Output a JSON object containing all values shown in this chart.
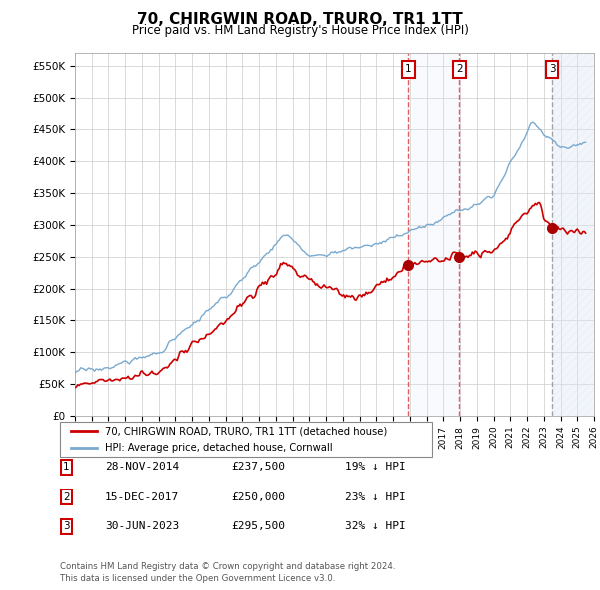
{
  "title": "70, CHIRGWIN ROAD, TRURO, TR1 1TT",
  "subtitle": "Price paid vs. HM Land Registry's House Price Index (HPI)",
  "ylim": [
    0,
    570000
  ],
  "yticks": [
    0,
    50000,
    100000,
    150000,
    200000,
    250000,
    300000,
    350000,
    400000,
    450000,
    500000,
    550000
  ],
  "ytick_labels": [
    "£0",
    "£50K",
    "£100K",
    "£150K",
    "£200K",
    "£250K",
    "£300K",
    "£350K",
    "£400K",
    "£450K",
    "£500K",
    "£550K"
  ],
  "background_color": "#ffffff",
  "grid_color": "#cccccc",
  "hpi_color": "#7aaad0",
  "price_color": "#cc0000",
  "sale_marker_color": "#aa0000",
  "sale_line_color_red": "#dd4444",
  "sale_line_color_gray": "#888888",
  "hatch_color": "#dce8f5",
  "shade_color": "#dce8f5",
  "transactions": [
    {
      "id": 1,
      "date_x": 2014.92,
      "price": 237500,
      "label": "28-NOV-2014",
      "line_style": "red"
    },
    {
      "id": 2,
      "date_x": 2017.96,
      "price": 250000,
      "label": "15-DEC-2017",
      "line_style": "red"
    },
    {
      "id": 3,
      "date_x": 2023.49,
      "price": 295500,
      "label": "30-JUN-2023",
      "line_style": "gray"
    }
  ],
  "legend_entries": [
    "70, CHIRGWIN ROAD, TRURO, TR1 1TT (detached house)",
    "HPI: Average price, detached house, Cornwall"
  ],
  "table_rows": [
    {
      "id": 1,
      "date": "28-NOV-2014",
      "price": "£237,500",
      "pct": "19% ↓ HPI"
    },
    {
      "id": 2,
      "date": "15-DEC-2017",
      "price": "£250,000",
      "pct": "23% ↓ HPI"
    },
    {
      "id": 3,
      "date": "30-JUN-2023",
      "price": "£295,500",
      "pct": "32% ↓ HPI"
    }
  ],
  "footer": "Contains HM Land Registry data © Crown copyright and database right 2024.\nThis data is licensed under the Open Government Licence v3.0.",
  "xmin": 1995,
  "xmax": 2026
}
